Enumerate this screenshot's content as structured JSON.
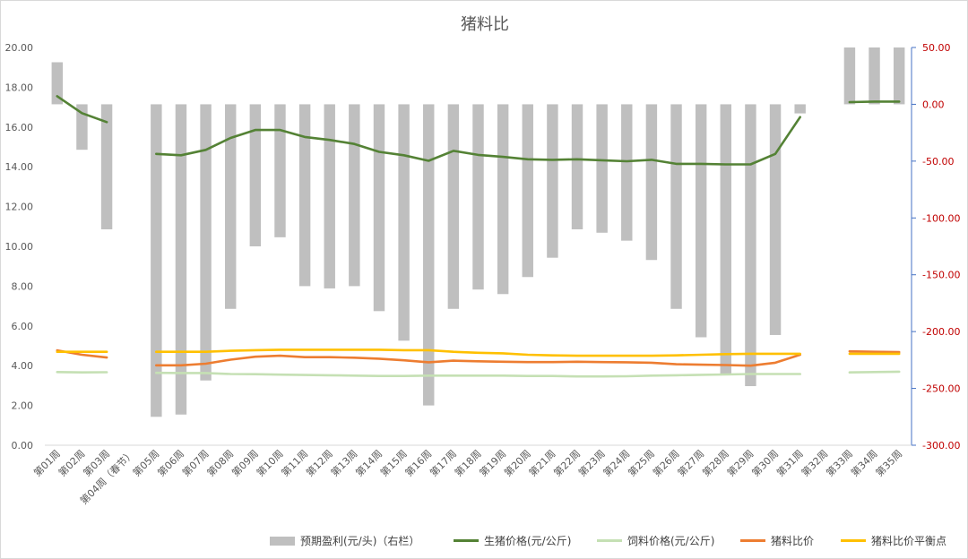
{
  "chart_data": {
    "type": "bar+line",
    "title": "猪料比",
    "categories": [
      "第01周",
      "第02周",
      "第03周",
      "第04周（春节）",
      "第05周",
      "第06周",
      "第07周",
      "第08周",
      "第09周",
      "第10周",
      "第11周",
      "第12周",
      "第13周",
      "第14周",
      "第15周",
      "第16周",
      "第17周",
      "第18周",
      "第19周",
      "第20周",
      "第21周",
      "第22周",
      "第23周",
      "第24周",
      "第25周",
      "第26周",
      "第27周",
      "第28周",
      "第29周",
      "第30周",
      "第31周",
      "第32周",
      "第33周",
      "第34周",
      "第35周"
    ],
    "left_axis": {
      "min": 0,
      "max": 20,
      "step": 2,
      "ticks": [
        "0.00",
        "2.00",
        "4.00",
        "6.00",
        "8.00",
        "10.00",
        "12.00",
        "14.00",
        "16.00",
        "18.00",
        "20.00"
      ]
    },
    "right_axis": {
      "min": -300,
      "max": 50,
      "step": 50,
      "ticks": [
        "-300.00",
        "-250.00",
        "-200.00",
        "-150.00",
        "-100.00",
        "-50.00",
        "0.00",
        "50.00"
      ]
    },
    "series": [
      {
        "name": "预期盈利(元/头)（右栏）",
        "type": "bar",
        "axis": "right",
        "color": "#bfbfbf",
        "values": [
          37,
          -40,
          -110,
          null,
          -275,
          -273,
          -243,
          -180,
          -125,
          -117,
          -160,
          -162,
          -160,
          -182,
          -208,
          -265,
          -180,
          -163,
          -167,
          -152,
          -135,
          -110,
          -113,
          -120,
          -137,
          -180,
          -205,
          -237,
          -248,
          -203,
          -8,
          null,
          50,
          50,
          50
        ]
      },
      {
        "name": "生猪价格(元/公斤)",
        "type": "line",
        "axis": "left",
        "color": "#548235",
        "values": [
          17.55,
          16.7,
          16.25,
          null,
          14.65,
          14.58,
          14.85,
          15.45,
          15.85,
          15.85,
          15.5,
          15.35,
          15.15,
          14.75,
          14.58,
          14.3,
          14.8,
          14.6,
          14.5,
          14.38,
          14.35,
          14.38,
          14.33,
          14.28,
          14.35,
          14.15,
          14.15,
          14.12,
          14.12,
          14.65,
          16.5,
          null,
          17.25,
          17.28,
          17.28
        ]
      },
      {
        "name": "饲料价格(元/公斤)",
        "type": "line",
        "axis": "left",
        "color": "#c5e0b4",
        "values": [
          3.68,
          3.66,
          3.67,
          null,
          3.64,
          3.63,
          3.63,
          3.58,
          3.57,
          3.55,
          3.53,
          3.52,
          3.5,
          3.48,
          3.48,
          3.5,
          3.5,
          3.5,
          3.5,
          3.48,
          3.48,
          3.46,
          3.46,
          3.47,
          3.5,
          3.52,
          3.54,
          3.56,
          3.58,
          3.58,
          3.58,
          null,
          3.66,
          3.68,
          3.7
        ]
      },
      {
        "name": "猪料比价",
        "type": "line",
        "axis": "left",
        "color": "#ed7d31",
        "values": [
          4.77,
          4.55,
          4.41,
          null,
          4.02,
          4.02,
          4.1,
          4.3,
          4.45,
          4.5,
          4.43,
          4.43,
          4.4,
          4.35,
          4.27,
          4.17,
          4.25,
          4.22,
          4.2,
          4.18,
          4.18,
          4.2,
          4.18,
          4.17,
          4.15,
          4.07,
          4.05,
          4.03,
          4.0,
          4.15,
          4.55,
          null,
          4.72,
          4.7,
          4.68
        ]
      },
      {
        "name": "猪料比价平衡点",
        "type": "line",
        "axis": "left",
        "color": "#ffc000",
        "values": [
          4.7,
          4.7,
          4.7,
          null,
          4.7,
          4.7,
          4.7,
          4.75,
          4.78,
          4.8,
          4.8,
          4.8,
          4.8,
          4.8,
          4.78,
          4.78,
          4.7,
          4.65,
          4.62,
          4.55,
          4.52,
          4.5,
          4.5,
          4.5,
          4.5,
          4.52,
          4.55,
          4.58,
          4.6,
          4.6,
          4.6,
          null,
          4.6,
          4.6,
          4.6
        ]
      }
    ],
    "grid": false,
    "legend": "bottom"
  }
}
